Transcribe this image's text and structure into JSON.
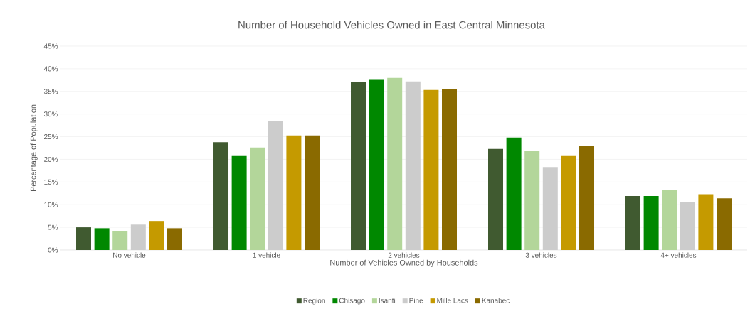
{
  "chart_data": {
    "type": "bar",
    "title": "Number of Household Vehicles Owned in East Central Minnesota",
    "xlabel": "Number  of Vehicles Owned by Households",
    "ylabel": "Percentage of Population",
    "categories": [
      "No vehicle",
      "1 vehicle",
      "2 vehicles",
      "3 vehicles",
      "4+ vehicles"
    ],
    "series": [
      {
        "name": "Region",
        "color": "#405a30",
        "values": [
          5.0,
          23.8,
          37.0,
          22.3,
          11.9
        ]
      },
      {
        "name": "Chisago",
        "color": "#008800",
        "values": [
          4.8,
          20.9,
          37.7,
          24.8,
          11.9
        ]
      },
      {
        "name": "Isanti",
        "color": "#b3d69a",
        "values": [
          4.2,
          22.6,
          38.0,
          21.9,
          13.3
        ]
      },
      {
        "name": "Pine",
        "color": "#cccccc",
        "values": [
          5.6,
          28.4,
          37.2,
          18.3,
          10.6
        ]
      },
      {
        "name": "Mille Lacs",
        "color": "#c59a00",
        "values": [
          6.4,
          25.3,
          35.3,
          20.9,
          12.3
        ]
      },
      {
        "name": "Kanabec",
        "color": "#8a6a00",
        "values": [
          4.8,
          25.3,
          35.5,
          22.9,
          11.4
        ]
      }
    ],
    "ylim": [
      0,
      45
    ],
    "yticks": [
      {
        "value": 0,
        "label": "0%"
      },
      {
        "value": 5,
        "label": "5%"
      },
      {
        "value": 10,
        "label": "10%"
      },
      {
        "value": 15,
        "label": "15%"
      },
      {
        "value": 20,
        "label": "20%"
      },
      {
        "value": 25,
        "label": "25%"
      },
      {
        "value": 30,
        "label": "30%"
      },
      {
        "value": 35,
        "label": "35%"
      },
      {
        "value": 40,
        "label": "40%"
      },
      {
        "value": 45,
        "label": "45%"
      }
    ],
    "grid": "y",
    "legend": "bottom"
  }
}
